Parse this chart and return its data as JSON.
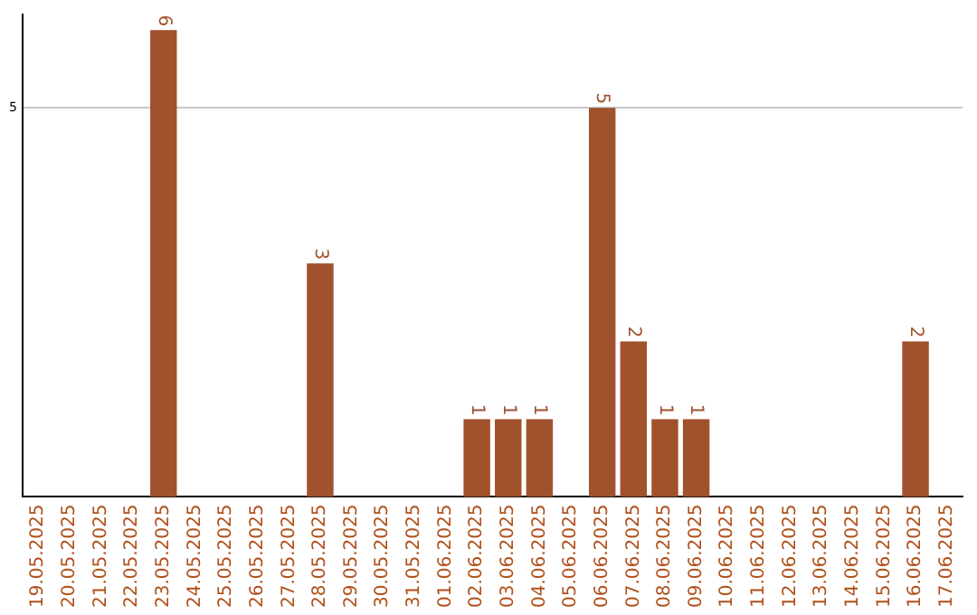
{
  "chart_data": {
    "type": "bar",
    "categories": [
      "19.05.2025",
      "20.05.2025",
      "21.05.2025",
      "22.05.2025",
      "23.05.2025",
      "24.05.2025",
      "25.05.2025",
      "26.05.2025",
      "27.05.2025",
      "28.05.2025",
      "29.05.2025",
      "30.05.2025",
      "31.05.2025",
      "01.06.2025",
      "02.06.2025",
      "03.06.2025",
      "04.06.2025",
      "05.06.2025",
      "06.06.2025",
      "07.06.2025",
      "08.06.2025",
      "09.06.2025",
      "10.06.2025",
      "11.06.2025",
      "12.06.2025",
      "13.06.2025",
      "14.06.2025",
      "15.06.2025",
      "16.06.2025",
      "17.06.2025"
    ],
    "values": [
      0,
      0,
      0,
      0,
      6,
      0,
      0,
      0,
      0,
      3,
      0,
      0,
      0,
      0,
      1,
      1,
      1,
      0,
      5,
      2,
      1,
      1,
      0,
      0,
      0,
      0,
      0,
      0,
      2,
      0
    ],
    "value_labels": [
      null,
      null,
      null,
      null,
      "6",
      null,
      null,
      null,
      null,
      "3",
      null,
      null,
      null,
      null,
      "1",
      "1",
      "1",
      null,
      "5",
      "2",
      "1",
      "1",
      null,
      null,
      null,
      null,
      null,
      null,
      "2",
      null
    ],
    "color": "#a0522d",
    "ylim": [
      0,
      6.2
    ],
    "yticks": [
      5
    ],
    "grid": "y",
    "legend": false
  }
}
